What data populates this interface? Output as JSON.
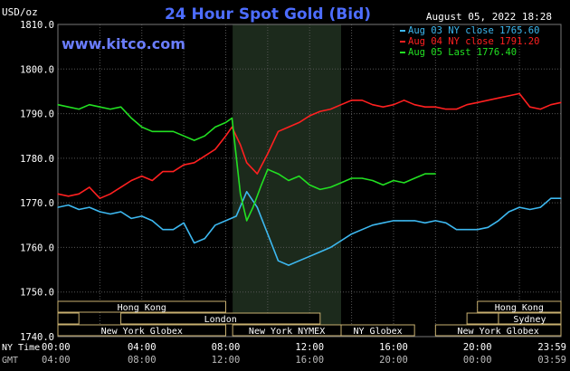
{
  "header": {
    "title": "24 Hour Spot Gold (Bid)",
    "unit": "USD/oz",
    "timestamp": "August 05, 2022 18:28",
    "site": "www.kitco.com"
  },
  "colors": {
    "background": "#000000",
    "grid": "#555555",
    "axis_text": "#ffffff",
    "title": "#4d6dff",
    "site": "#6a7dff",
    "session_band": "#1c2a1c",
    "session_box_border": "#c8b070",
    "session_box_text": "#ffffff",
    "aug03": "#3db8f0",
    "aug04": "#ff2020",
    "aug05": "#22e022"
  },
  "legend": [
    {
      "key": "aug03",
      "label": "Aug 03 NY close 1765.60"
    },
    {
      "key": "aug04",
      "label": "Aug 04 NY close 1791.20"
    },
    {
      "key": "aug05",
      "label": "Aug 05 Last 1776.40"
    }
  ],
  "axis_labels": {
    "ny_time": "NY Time",
    "gmt": "GMT"
  },
  "sessions": [
    {
      "label": "Hong Kong",
      "start": 0,
      "end": 8,
      "row": 0
    },
    {
      "label": "Hong Kong",
      "start": 20,
      "end": 23.98,
      "row": 0
    },
    {
      "label": "",
      "start": 0,
      "end": 1,
      "row": 1
    },
    {
      "label": "London",
      "start": 3,
      "end": 12.5,
      "row": 1
    },
    {
      "label": "Sydney",
      "start": 21,
      "end": 23.98,
      "row": 1
    },
    {
      "label": "",
      "start": 19.5,
      "end": 21,
      "row": 1
    },
    {
      "label": "New York Globex",
      "start": 0,
      "end": 8,
      "row": 2
    },
    {
      "label": "New York NYMEX",
      "start": 8.33,
      "end": 13.5,
      "row": 2
    },
    {
      "label": "NY Globex",
      "start": 13.5,
      "end": 17,
      "row": 2
    },
    {
      "label": "New York Globex",
      "start": 18,
      "end": 23.98,
      "row": 2
    }
  ],
  "chart_data": {
    "type": "line",
    "title": "24 Hour Spot Gold (Bid)",
    "ylabel": "USD/oz",
    "ylim": [
      1740,
      1810
    ],
    "xlim": [
      0,
      23.98
    ],
    "y_ticks": [
      "1740.0",
      "1750.0",
      "1760.0",
      "1770.0",
      "1780.0",
      "1790.0",
      "1800.0",
      "1810.0"
    ],
    "x_tick_values": [
      0,
      4,
      8,
      12,
      16,
      20,
      23.98
    ],
    "x_ticks_ny": [
      "00:00",
      "04:00",
      "08:00",
      "12:00",
      "16:00",
      "20:00",
      "23:59"
    ],
    "x_ticks_gmt": [
      "04:00",
      "08:00",
      "12:00",
      "16:00",
      "20:00",
      "00:00",
      "03:59"
    ],
    "highlight_band": [
      8.33,
      13.5
    ],
    "grid": true,
    "legend_position": "top-right",
    "series": [
      {
        "key": "aug03",
        "x": [
          0,
          0.5,
          1,
          1.5,
          2,
          2.5,
          3,
          3.5,
          4,
          4.5,
          5,
          5.5,
          6,
          6.5,
          7,
          7.5,
          8,
          8.5,
          9,
          9.5,
          10,
          10.5,
          11,
          11.5,
          12,
          12.5,
          13,
          13.5,
          14,
          14.5,
          15,
          15.5,
          16,
          16.5,
          17,
          17.5,
          18,
          18.5,
          19,
          19.5,
          20,
          20.5,
          21,
          21.5,
          22,
          22.5,
          23,
          23.5,
          23.98
        ],
        "values": [
          1769,
          1769.5,
          1768.5,
          1769,
          1768,
          1767.5,
          1768,
          1766.5,
          1767,
          1766,
          1764,
          1764,
          1765.5,
          1761,
          1762,
          1765,
          1766,
          1767,
          1772.5,
          1769,
          1763,
          1757,
          1756,
          1757,
          1758,
          1759,
          1760,
          1761.5,
          1763,
          1764,
          1765,
          1765.5,
          1766,
          1766,
          1766,
          1765.5,
          1766,
          1765.5,
          1764,
          1764,
          1764,
          1764.5,
          1766,
          1768,
          1769,
          1768.5,
          1769,
          1771,
          1771
        ]
      },
      {
        "key": "aug04",
        "x": [
          0,
          0.5,
          1,
          1.5,
          2,
          2.5,
          3,
          3.5,
          4,
          4.5,
          5,
          5.5,
          6,
          6.5,
          7,
          7.5,
          8,
          8.3,
          8.7,
          9,
          9.5,
          10,
          10.5,
          11,
          11.5,
          12,
          12.5,
          13,
          13.5,
          14,
          14.5,
          15,
          15.5,
          16,
          16.5,
          17,
          17.5,
          18,
          18.5,
          19,
          19.5,
          20,
          20.5,
          21,
          21.5,
          22,
          22.5,
          23,
          23.5,
          23.98
        ],
        "values": [
          1772,
          1771.5,
          1772,
          1773.5,
          1771,
          1772,
          1773.5,
          1775,
          1776,
          1775,
          1777,
          1777,
          1778.5,
          1779,
          1780.5,
          1782,
          1785,
          1787,
          1783,
          1779,
          1776.5,
          1781,
          1786,
          1787,
          1788,
          1789.5,
          1790.5,
          1791,
          1792,
          1793,
          1793,
          1792,
          1791.5,
          1792,
          1793,
          1792,
          1791.5,
          1791.5,
          1791,
          1791,
          1792,
          1792.5,
          1793,
          1793.5,
          1794,
          1794.5,
          1791.5,
          1791,
          1792,
          1792.5
        ]
      },
      {
        "key": "aug05",
        "x": [
          0,
          0.5,
          1,
          1.5,
          2,
          2.5,
          3,
          3.5,
          4,
          4.5,
          5,
          5.5,
          6,
          6.5,
          7,
          7.5,
          8,
          8.3,
          8.7,
          9,
          9.3,
          9.7,
          10,
          10.5,
          11,
          11.5,
          12,
          12.5,
          13,
          13.5,
          14,
          14.5,
          15,
          15.5,
          16,
          16.5,
          17,
          17.5,
          18
        ],
        "values": [
          1792,
          1791.5,
          1791,
          1792,
          1791.5,
          1791,
          1791.5,
          1789,
          1787,
          1786,
          1786,
          1786,
          1785,
          1784,
          1785,
          1787,
          1788,
          1789,
          1772,
          1766,
          1769,
          1774,
          1777.5,
          1776.5,
          1775,
          1776,
          1774,
          1773,
          1773.5,
          1774.5,
          1775.5,
          1775.5,
          1775,
          1774,
          1775,
          1774.5,
          1775.5,
          1776.5,
          1776.5
        ]
      }
    ]
  }
}
